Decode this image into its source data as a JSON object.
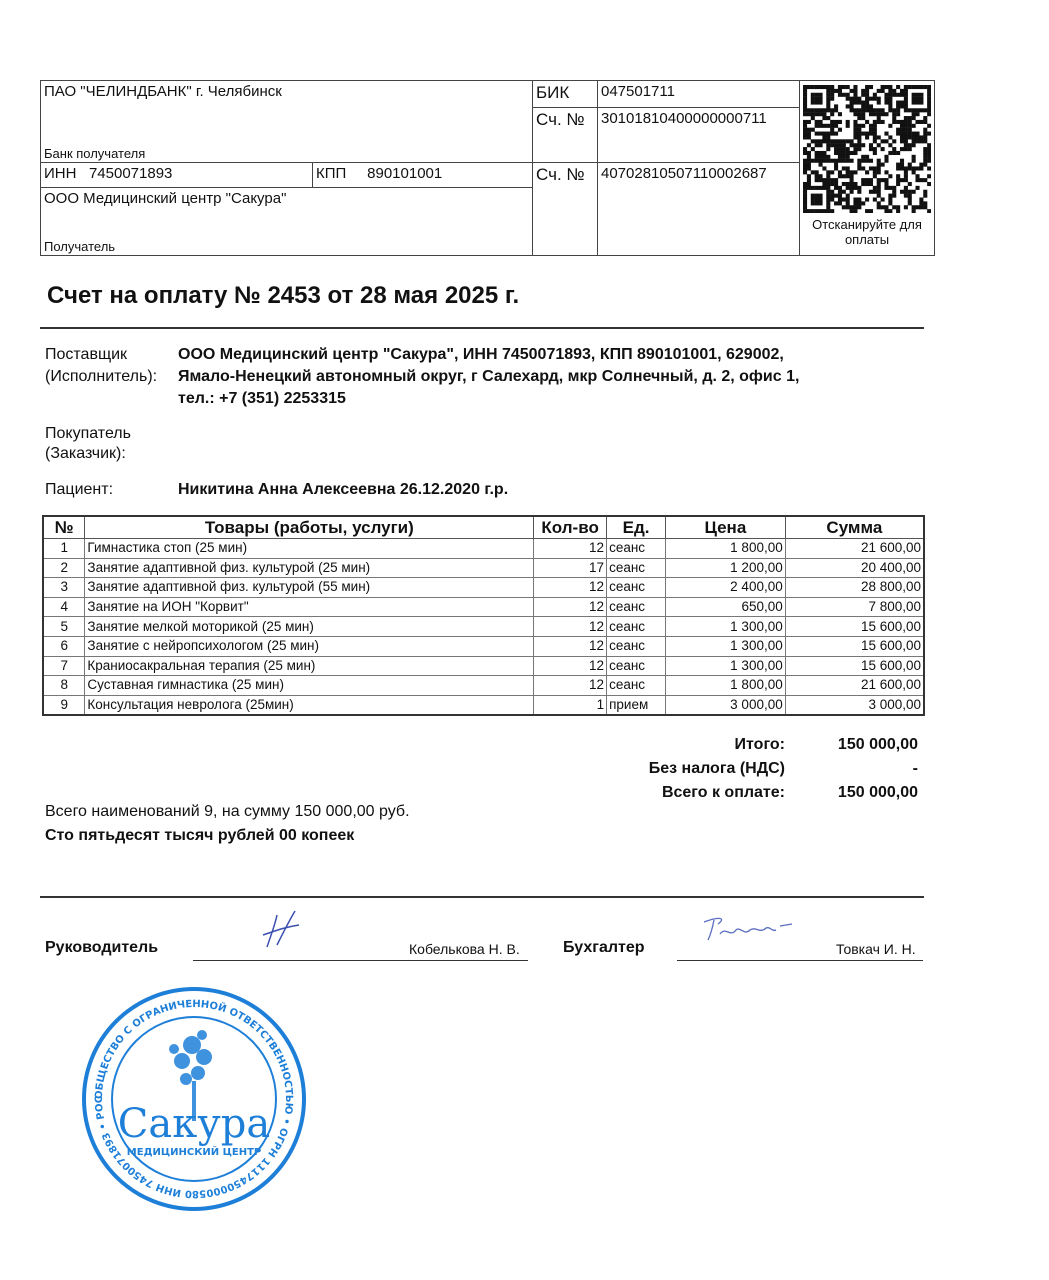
{
  "bank": {
    "bank_name": "ПАО \"ЧЕЛИНДБАНК\" г. Челябинск",
    "bank_label": "Банк получателя",
    "bik_label": "БИК",
    "bik": "047501711",
    "corr_label": "Сч. №",
    "corr_account": "30101810400000000711",
    "inn_label": "ИНН",
    "inn": "7450071893",
    "kpp_label": "КПП",
    "kpp": "890101001",
    "account_label": "Сч. №",
    "account": "40702810507110002687",
    "recipient_name": "ООО Медицинский центр \"Сакура\"",
    "recipient_label": "Получатель",
    "qr_caption": "Отсканируйте для оплаты"
  },
  "title": "Счет на оплату № 2453 от 28 мая 2025 г.",
  "supplier": {
    "label_1": "Поставщик",
    "label_2": "(Исполнитель):",
    "line_1": "ООО Медицинский центр \"Сакура\", ИНН 7450071893, КПП 890101001, 629002,",
    "line_2": "Ямало-Ненецкий автономный округ, г Салехард, мкр Солнечный, д. 2, офис 1,",
    "line_3": "тел.: +7 (351) 2253315"
  },
  "buyer": {
    "label_1": "Покупатель",
    "label_2": "(Заказчик):"
  },
  "patient": {
    "label": "Пациент:",
    "value": "Никитина Анна Алексеевна 26.12.2020 г.р."
  },
  "table": {
    "headers": [
      "№",
      "Товары (работы, услуги)",
      "Кол-во",
      "Ед.",
      "Цена",
      "Сумма"
    ],
    "rows": [
      [
        "1",
        "Гимнастика стоп (25 мин)",
        "12",
        "сеанс",
        "1 800,00",
        "21 600,00"
      ],
      [
        "2",
        "Занятие адаптивной физ. культурой (25 мин)",
        "17",
        "сеанс",
        "1 200,00",
        "20 400,00"
      ],
      [
        "3",
        "Занятие адаптивной физ. культурой (55 мин)",
        "12",
        "сеанс",
        "2 400,00",
        "28 800,00"
      ],
      [
        "4",
        "Занятие на ИОН \"Корвит\"",
        "12",
        "сеанс",
        "650,00",
        "7 800,00"
      ],
      [
        "5",
        "Занятие мелкой моторикой (25 мин)",
        "12",
        "сеанс",
        "1 300,00",
        "15 600,00"
      ],
      [
        "6",
        "Занятие с нейропсихологом (25 мин)",
        "12",
        "сеанс",
        "1 300,00",
        "15 600,00"
      ],
      [
        "7",
        "Краниосакральная терапия (25 мин)",
        "12",
        "сеанс",
        "1 300,00",
        "15 600,00"
      ],
      [
        "8",
        "Суставная гимнастика (25 мин)",
        "12",
        "сеанс",
        "1 800,00",
        "21 600,00"
      ],
      [
        "9",
        "Консультация невролога (25мин)",
        "1",
        "прием",
        "3 000,00",
        "3 000,00"
      ]
    ]
  },
  "totals": {
    "total_label": "Итого:",
    "total": "150 000,00",
    "tax_label": "Без налога (НДС)",
    "tax": "-",
    "due_label": "Всего к оплате:",
    "due": "150 000,00"
  },
  "summary": {
    "count_line": "Всего наименований 9, на сумму 150 000,00 руб.",
    "words": "Сто пятьдесят тысяч рублей 00 копеек"
  },
  "signatures": {
    "director_label": "Руководитель",
    "director_name": "Кобелькова Н. В.",
    "accountant_label": "Бухгалтер",
    "accountant_name": "Товкач И. Н."
  },
  "stamp": {
    "name": "Сакура",
    "subtitle": "МЕДИЦИНСКИЙ ЦЕНТР",
    "ring_text": "ОБЩЕСТВО С ОГРАНИЧЕННОЙ ОТВЕТСТВЕННОСТЬЮ • ОГРН 1117450000580 ИНН 7450071893 • РОССИЯ • ЧЕЛЯБИНСК •",
    "color": "#1e7fd8"
  },
  "colors": {
    "stamp": "#1e7fd8",
    "signature": "#3a4fb0"
  }
}
